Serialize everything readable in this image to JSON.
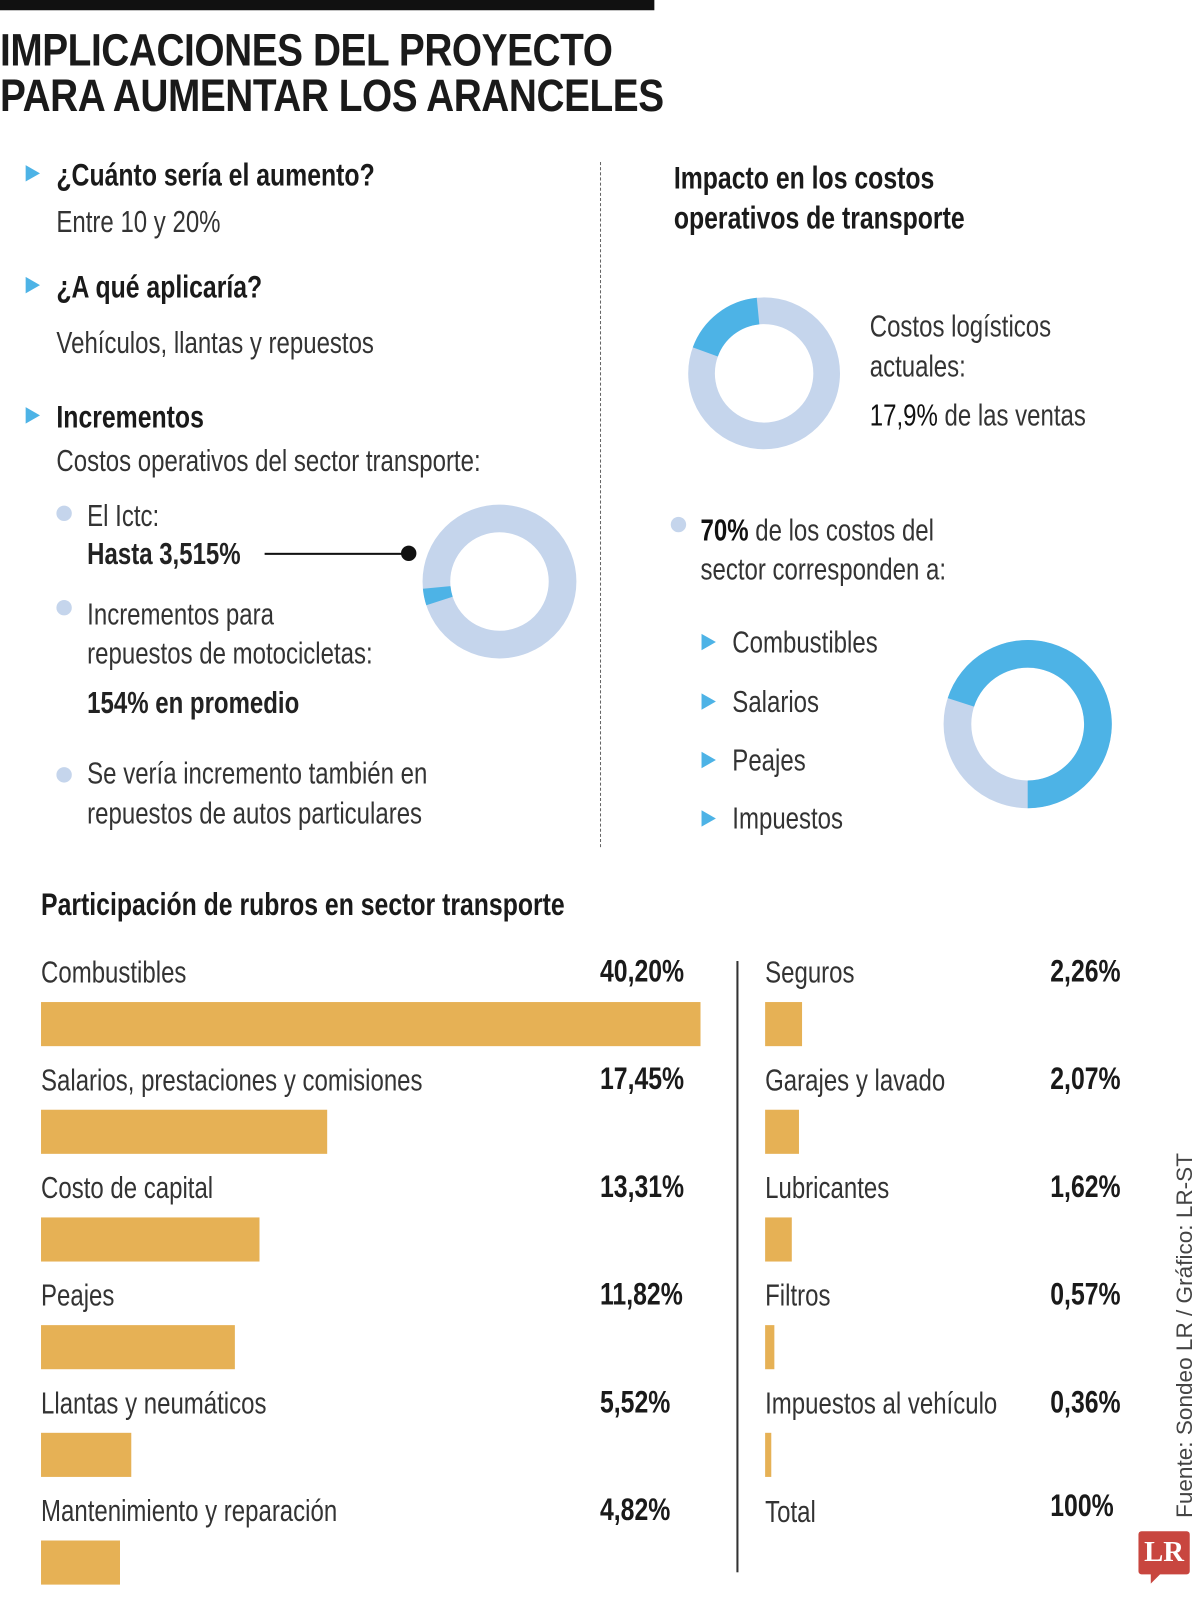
{
  "title": [
    "IMPLICACIONES DEL PROYECTO",
    "PARA AUMENTAR LOS ARANCELES"
  ],
  "left": {
    "q1": "¿Cuánto sería el aumento?",
    "a1": "Entre 10 y 20%",
    "q2": "¿A qué aplicaría?",
    "a2": "Vehículos, llantas y repuestos",
    "q3": "Incrementos",
    "a3": "Costos operativos del sector transporte:",
    "b1_label": "El Ictc:",
    "b1_value": "Hasta 3,515%",
    "b2_line1": "Incrementos para",
    "b2_line2": "repuestos de motocicletas:",
    "b2_value": "154% en promedio",
    "b3_line1": "Se vería incremento también en",
    "b3_line2": "repuestos de autos particulares"
  },
  "right": {
    "heading": [
      "Impacto en los costos",
      "operativos de transporte"
    ],
    "logistics_line1": "Costos logísticos",
    "logistics_line2": "actuales:",
    "logistics_value": "17,9%",
    "logistics_suffix": " de las ventas",
    "share_value": "70%",
    "share_line1": " de los costos del",
    "share_line2": "sector corresponden a:",
    "items": [
      "Combustibles",
      "Salarios",
      "Peajes",
      "Impuestos"
    ]
  },
  "donuts": {
    "ictc_percent": 3.515,
    "logistics_percent": 17.9,
    "sector_percent": 70
  },
  "colors": {
    "accent": "#4db3e6",
    "light": "#c5d5ec",
    "bar": "#e6b155",
    "logo": "#c8463f"
  },
  "chart_data": {
    "type": "bar",
    "title": "Participación de rubros en sector transporte",
    "orientation": "horizontal",
    "categories": [
      "Combustibles",
      "Salarios, prestaciones y comisiones",
      "Costo de capital",
      "Peajes",
      "Llantas y neumáticos",
      "Mantenimiento y reparación",
      "Seguros",
      "Garajes y lavado",
      "Lubricantes",
      "Filtros",
      "Impuestos al vehículo"
    ],
    "values": [
      40.2,
      17.45,
      13.31,
      11.82,
      5.52,
      4.82,
      2.26,
      2.07,
      1.62,
      0.57,
      0.36
    ],
    "labels": [
      "40,20%",
      "17,45%",
      "13,31%",
      "11,82%",
      "5,52%",
      "4,82%",
      "2,26%",
      "2,07%",
      "1,62%",
      "0,57%",
      "0,36%"
    ],
    "total_label": "Total",
    "total_value": "100%"
  },
  "source": "Fuente: Sondeo LR / Gráfico: LR-ST",
  "logo": "LR"
}
